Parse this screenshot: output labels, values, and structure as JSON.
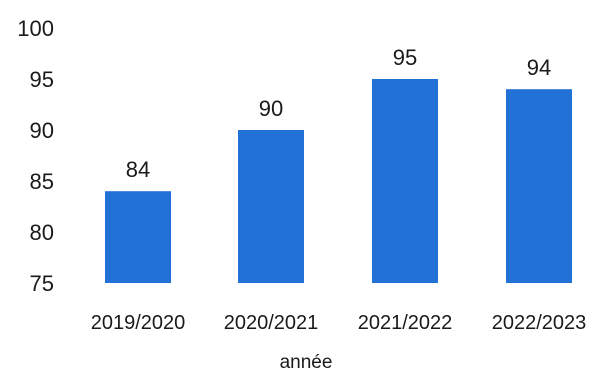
{
  "chart_data": {
    "type": "bar",
    "categories": [
      "2019/2020",
      "2020/2021",
      "2021/2022",
      "2022/2023"
    ],
    "values": [
      84,
      90,
      95,
      94
    ],
    "data_labels": [
      "84",
      "90",
      "95",
      "94"
    ],
    "xlabel": "année",
    "ylabel": "",
    "ylim": [
      75,
      100
    ],
    "yticks": [
      75,
      80,
      85,
      90,
      95,
      100
    ],
    "ytick_labels": [
      "75",
      "80",
      "85",
      "90",
      "95",
      "100"
    ],
    "grid": false,
    "legend": "none",
    "bar_color": "#2271d6"
  }
}
